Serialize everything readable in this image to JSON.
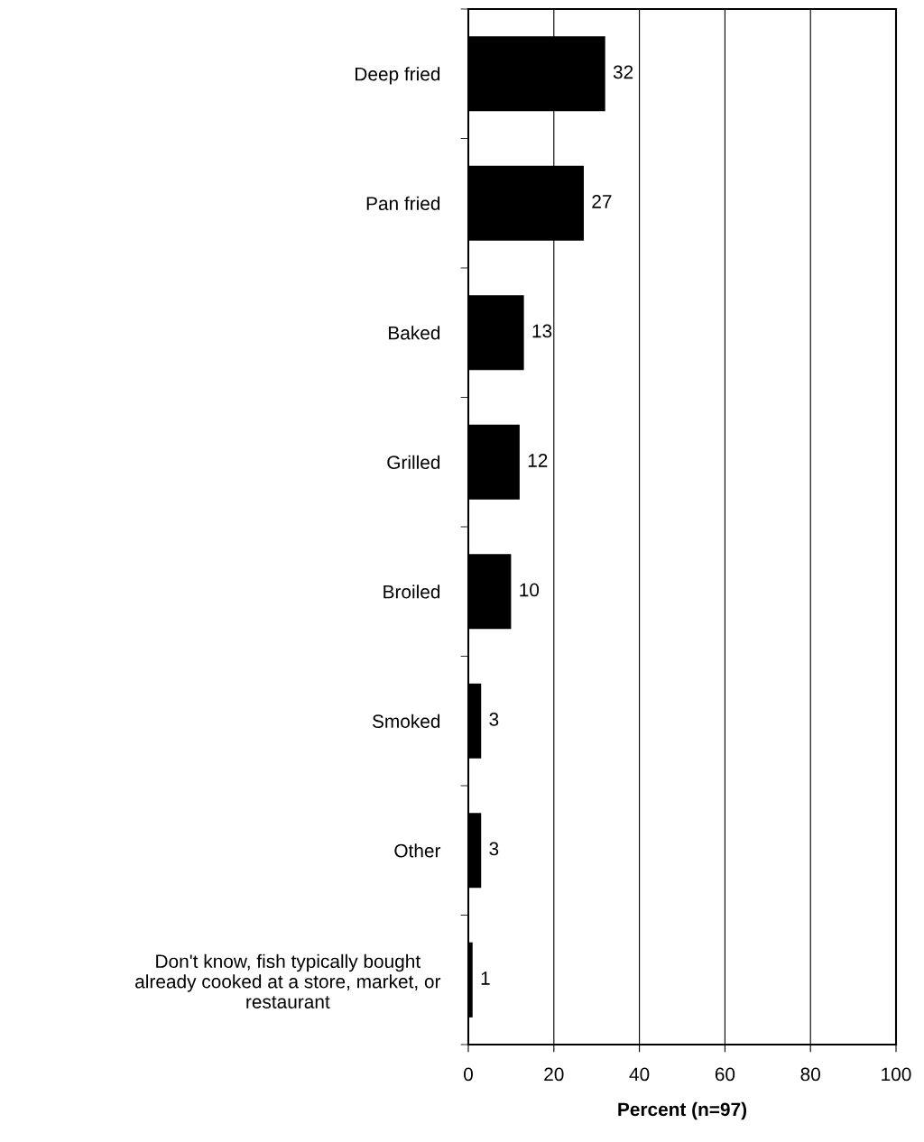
{
  "chart_data": {
    "type": "bar",
    "orientation": "horizontal",
    "xlabel": "Percent (n=97)",
    "categories": [
      "Deep fried",
      "Pan fried",
      "Baked",
      "Grilled",
      "Broiled",
      "Smoked",
      "Other",
      "Don't know, fish typically bought\nalready cooked at a store, market, or\nrestaurant"
    ],
    "values": [
      32,
      27,
      13,
      12,
      10,
      3,
      3,
      1
    ],
    "color": "#000000",
    "xlim": [
      0,
      100
    ],
    "xticks": [
      0,
      20,
      40,
      60,
      80,
      100
    ],
    "grid": "x",
    "data_labels": true
  }
}
